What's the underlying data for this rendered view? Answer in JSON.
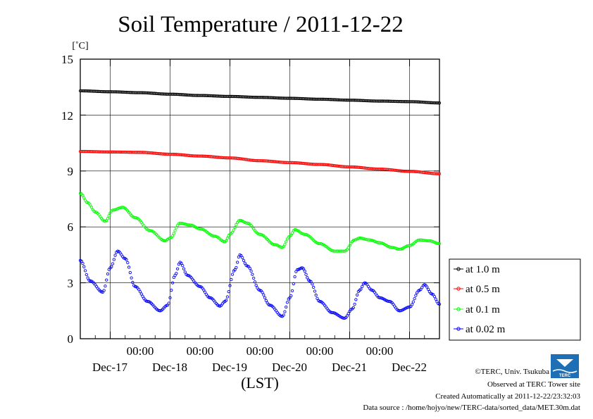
{
  "chart_data": {
    "type": "line",
    "title": "Soil Temperature / 2011-12-22",
    "ylabel": "[˚C]",
    "xlabel": "(LST)",
    "ylim": [
      0,
      15
    ],
    "yticks": [
      "0",
      "3",
      "6",
      "9",
      "12",
      "15"
    ],
    "xlim_hours_from_dec16_1200": [
      0,
      144
    ],
    "xticks": [
      {
        "time": "00:00",
        "date": "Dec-17"
      },
      {
        "time": "00:00",
        "date": "Dec-18"
      },
      {
        "time": "00:00",
        "date": "Dec-19"
      },
      {
        "time": "00:00",
        "date": "Dec-20"
      },
      {
        "time": "00:00",
        "date": "Dec-21"
      },
      {
        "time": "00:00",
        "date": "Dec-22"
      }
    ],
    "grid": true,
    "legend_position": "right",
    "series": [
      {
        "name": "at 1.0 m",
        "color": "#000000",
        "points": [
          [
            0,
            13.3
          ],
          [
            12,
            13.25
          ],
          [
            24,
            13.2
          ],
          [
            36,
            13.12
          ],
          [
            48,
            13.05
          ],
          [
            60,
            13.0
          ],
          [
            72,
            12.95
          ],
          [
            84,
            12.9
          ],
          [
            96,
            12.85
          ],
          [
            108,
            12.8
          ],
          [
            120,
            12.75
          ],
          [
            132,
            12.72
          ],
          [
            144,
            12.65
          ]
        ]
      },
      {
        "name": "at 0.5 m",
        "color": "#ff0000",
        "points": [
          [
            0,
            10.05
          ],
          [
            12,
            10.02
          ],
          [
            24,
            10.0
          ],
          [
            36,
            9.9
          ],
          [
            48,
            9.8
          ],
          [
            60,
            9.7
          ],
          [
            72,
            9.55
          ],
          [
            84,
            9.45
          ],
          [
            96,
            9.35
          ],
          [
            108,
            9.22
          ],
          [
            120,
            9.1
          ],
          [
            132,
            8.98
          ],
          [
            144,
            8.85
          ]
        ]
      },
      {
        "name": "at 0.1 m",
        "color": "#00ff00",
        "points": [
          [
            0,
            7.8
          ],
          [
            3,
            7.3
          ],
          [
            6,
            6.8
          ],
          [
            10,
            6.3
          ],
          [
            13,
            6.9
          ],
          [
            17,
            7.05
          ],
          [
            22,
            6.5
          ],
          [
            28,
            5.8
          ],
          [
            34,
            5.25
          ],
          [
            36,
            5.4
          ],
          [
            40,
            6.2
          ],
          [
            44,
            6.1
          ],
          [
            48,
            5.9
          ],
          [
            54,
            5.5
          ],
          [
            58,
            5.2
          ],
          [
            60,
            5.6
          ],
          [
            64,
            6.35
          ],
          [
            67,
            6.2
          ],
          [
            72,
            5.6
          ],
          [
            78,
            5.05
          ],
          [
            81,
            4.9
          ],
          [
            84,
            5.5
          ],
          [
            86,
            5.85
          ],
          [
            90,
            5.6
          ],
          [
            96,
            5.1
          ],
          [
            102,
            4.7
          ],
          [
            106,
            4.7
          ],
          [
            110,
            5.3
          ],
          [
            112,
            5.4
          ],
          [
            116,
            5.3
          ],
          [
            120,
            5.15
          ],
          [
            125,
            4.9
          ],
          [
            128,
            4.8
          ],
          [
            132,
            5.0
          ],
          [
            136,
            5.3
          ],
          [
            140,
            5.25
          ],
          [
            144,
            5.1
          ]
        ]
      },
      {
        "name": "at 0.02 m",
        "color": "#0000ff",
        "points": [
          [
            0,
            4.2
          ],
          [
            4,
            3.1
          ],
          [
            9,
            2.5
          ],
          [
            12,
            3.8
          ],
          [
            15,
            4.7
          ],
          [
            18,
            4.3
          ],
          [
            22,
            2.8
          ],
          [
            27,
            2.0
          ],
          [
            32,
            1.5
          ],
          [
            35,
            1.8
          ],
          [
            38,
            3.4
          ],
          [
            40,
            4.1
          ],
          [
            43,
            3.4
          ],
          [
            48,
            2.8
          ],
          [
            52,
            2.2
          ],
          [
            56,
            1.75
          ],
          [
            58,
            2.0
          ],
          [
            62,
            3.7
          ],
          [
            64,
            4.5
          ],
          [
            67,
            3.9
          ],
          [
            72,
            2.6
          ],
          [
            76,
            1.8
          ],
          [
            81,
            1.2
          ],
          [
            84,
            2.2
          ],
          [
            87,
            3.7
          ],
          [
            89,
            3.8
          ],
          [
            92,
            3.1
          ],
          [
            96,
            2.0
          ],
          [
            101,
            1.4
          ],
          [
            106,
            1.1
          ],
          [
            109,
            1.6
          ],
          [
            112,
            2.6
          ],
          [
            114,
            3.0
          ],
          [
            117,
            2.6
          ],
          [
            120,
            2.2
          ],
          [
            124,
            2.0
          ],
          [
            128,
            1.5
          ],
          [
            132,
            1.7
          ],
          [
            136,
            2.6
          ],
          [
            138,
            2.9
          ],
          [
            141,
            2.4
          ],
          [
            144,
            1.85
          ]
        ]
      }
    ]
  },
  "footer": {
    "copyright": "©TERC, Univ. Tsukuba",
    "observed": "Observed at TERC Tower site",
    "created": "Created Automatically at 2011-12-22/23:32:03",
    "source": "Data source : /home/hojyo/new/TERC-data/sorted_data/MET.30m.dat"
  },
  "logo": {
    "text": "TERC",
    "color": "#1e6fb5"
  }
}
